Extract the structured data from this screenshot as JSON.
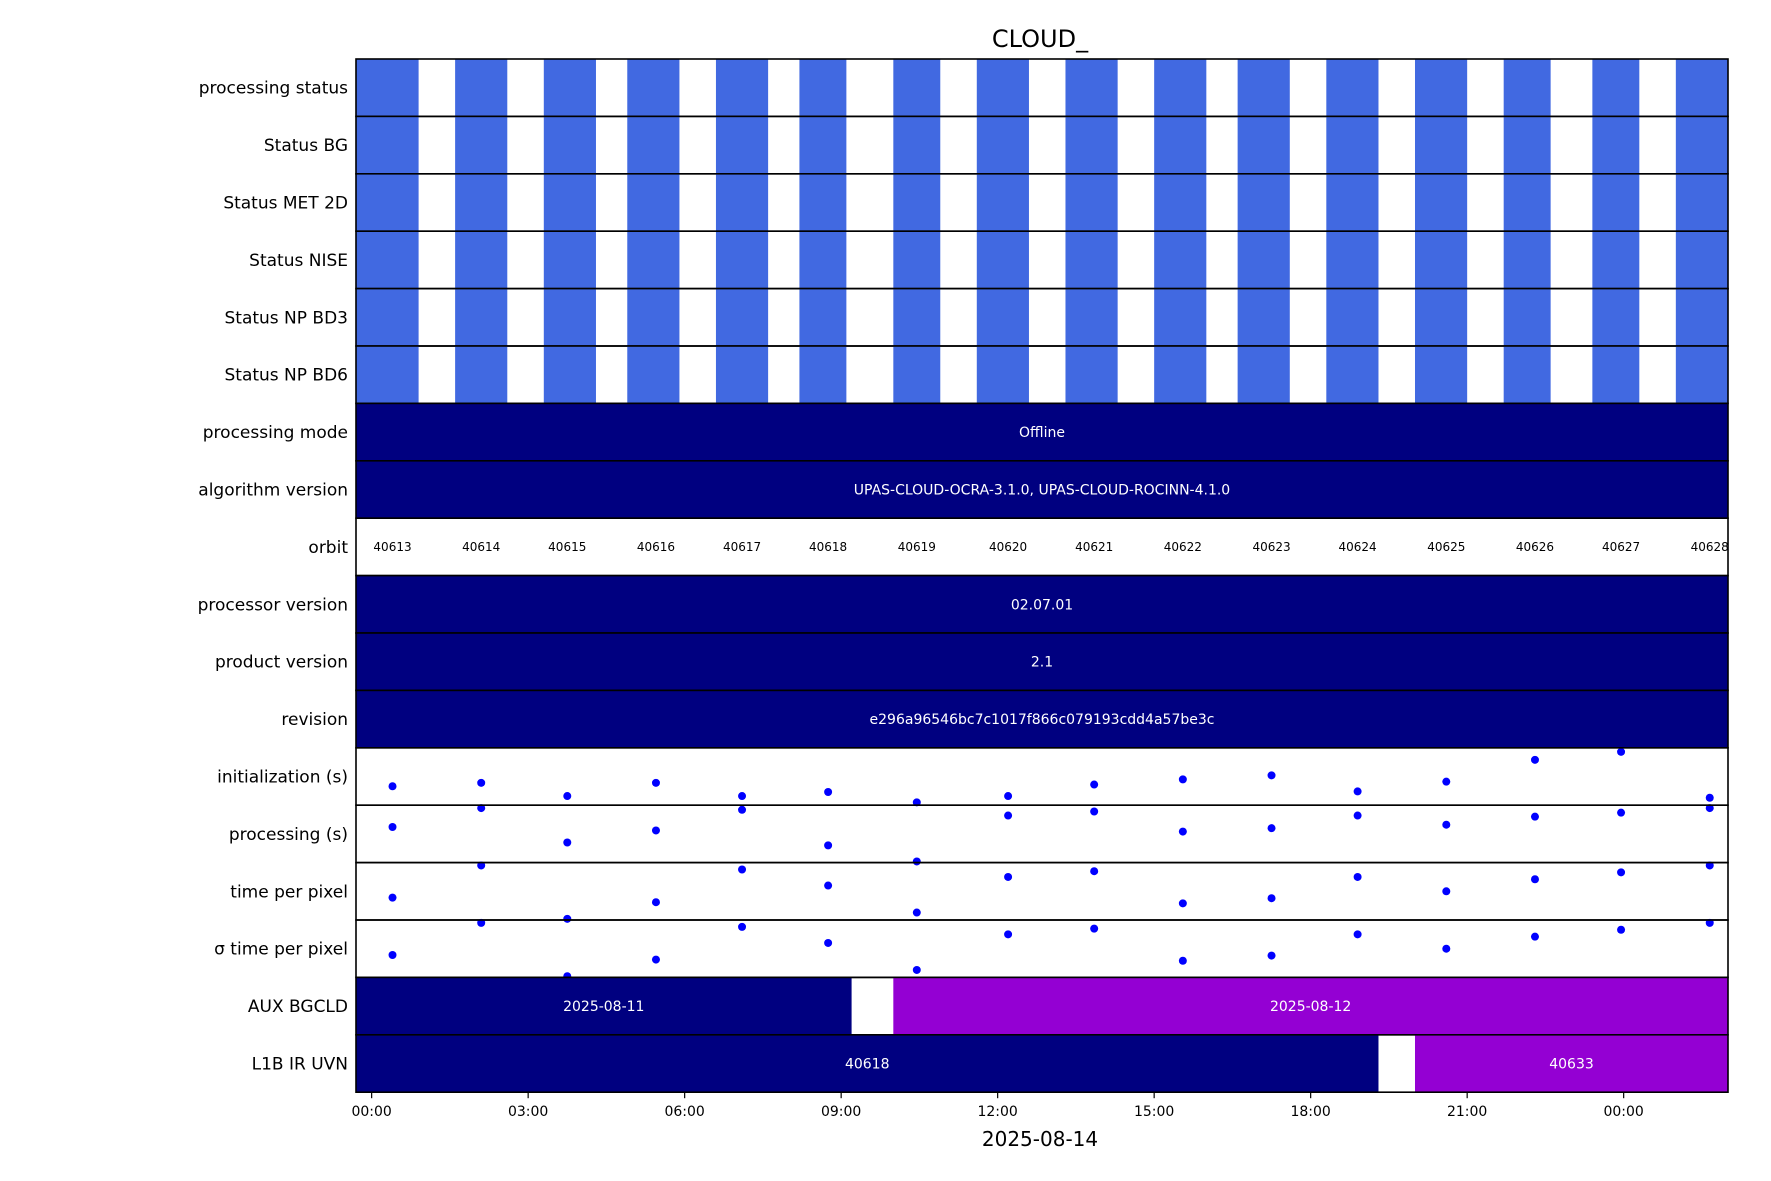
{
  "chart_data": {
    "type": "timeline",
    "title": "CLOUD_",
    "xlabel": "2025-08-14",
    "x_unit": "hours since 2025-08-14 00:00",
    "xlim": [
      -0.3,
      26.0
    ],
    "x_ticks": [
      {
        "value": 0,
        "label": "00:00"
      },
      {
        "value": 3,
        "label": "03:00"
      },
      {
        "value": 6,
        "label": "06:00"
      },
      {
        "value": 9,
        "label": "09:00"
      },
      {
        "value": 12,
        "label": "12:00"
      },
      {
        "value": 15,
        "label": "15:00"
      },
      {
        "value": 18,
        "label": "18:00"
      },
      {
        "value": 21,
        "label": "21:00"
      },
      {
        "value": 24,
        "label": "00:00"
      }
    ],
    "colors": {
      "status": "#4169e1",
      "fill": "#000080",
      "alt_fill": "#9400d3",
      "points": "#0000ff",
      "bar_text": "#ffffff",
      "border": "#000000"
    },
    "status_blocks": [
      [
        -0.3,
        0.9
      ],
      [
        1.6,
        2.6
      ],
      [
        3.3,
        4.3
      ],
      [
        4.9,
        5.9
      ],
      [
        6.6,
        7.6
      ],
      [
        8.2,
        9.1
      ],
      [
        10.0,
        10.9
      ],
      [
        11.6,
        12.6
      ],
      [
        13.3,
        14.3
      ],
      [
        15.0,
        16.0
      ],
      [
        16.6,
        17.6
      ],
      [
        18.3,
        19.3
      ],
      [
        20.0,
        21.0
      ],
      [
        21.7,
        22.6
      ],
      [
        23.4,
        24.3
      ],
      [
        25.0,
        26.0
      ]
    ],
    "rows": [
      {
        "label": "processing status",
        "kind": "status"
      },
      {
        "label": "Status BG",
        "kind": "status"
      },
      {
        "label": "Status MET 2D",
        "kind": "status"
      },
      {
        "label": "Status NISE",
        "kind": "status"
      },
      {
        "label": "Status NP BD3",
        "kind": "status"
      },
      {
        "label": "Status NP BD6",
        "kind": "status"
      },
      {
        "label": "processing mode",
        "kind": "bars",
        "bars": [
          {
            "start": -0.3,
            "end": 26.0,
            "text": "Offline",
            "color": "#000080"
          }
        ]
      },
      {
        "label": "algorithm version",
        "kind": "bars",
        "bars": [
          {
            "start": -0.3,
            "end": 26.0,
            "text": "UPAS-CLOUD-OCRA-3.1.0, UPAS-CLOUD-ROCINN-4.1.0",
            "color": "#000080"
          }
        ]
      },
      {
        "label": "orbit",
        "kind": "orbits",
        "x": [
          0.4,
          2.1,
          3.75,
          5.45,
          7.1,
          8.75,
          10.45,
          12.2,
          13.85,
          15.55,
          17.25,
          18.9,
          20.6,
          22.3,
          23.95,
          25.65
        ],
        "values": [
          "40613",
          "40614",
          "40615",
          "40616",
          "40617",
          "40618",
          "40619",
          "40620",
          "40621",
          "40622",
          "40623",
          "40624",
          "40625",
          "40626",
          "40627",
          "40628"
        ]
      },
      {
        "label": "processor version",
        "kind": "bars",
        "bars": [
          {
            "start": -0.3,
            "end": 26.0,
            "text": "02.07.01",
            "color": "#000080"
          }
        ]
      },
      {
        "label": "product version",
        "kind": "bars",
        "bars": [
          {
            "start": -0.3,
            "end": 26.0,
            "text": "2.1",
            "color": "#000080"
          }
        ]
      },
      {
        "label": "revision",
        "kind": "bars",
        "bars": [
          {
            "start": -0.3,
            "end": 26.0,
            "text": "e296a96546bc7c1017f866c079193cdd4a57be3c",
            "color": "#000080"
          }
        ]
      },
      {
        "label": "initialization (s)",
        "kind": "scatter",
        "x": [
          0.4,
          2.1,
          3.75,
          5.45,
          7.1,
          8.75,
          10.45,
          12.2,
          13.85,
          15.55,
          17.25,
          18.9,
          20.6,
          22.3,
          23.95,
          25.65
        ],
        "y": [
          0.33,
          0.39,
          0.16,
          0.39,
          0.16,
          0.23,
          0.05,
          0.16,
          0.36,
          0.45,
          0.52,
          0.24,
          0.41,
          0.79,
          0.93,
          0.13
        ]
      },
      {
        "label": "processing (s)",
        "kind": "scatter",
        "x": [
          0.4,
          2.1,
          3.75,
          5.45,
          7.1,
          8.75,
          10.45,
          12.2,
          13.85,
          15.55,
          17.25,
          18.9,
          20.6,
          22.3,
          23.95,
          25.65
        ],
        "y": [
          0.62,
          0.95,
          0.35,
          0.56,
          0.92,
          0.3,
          0.02,
          0.82,
          0.89,
          0.54,
          0.6,
          0.82,
          0.66,
          0.8,
          0.87,
          0.95
        ]
      },
      {
        "label": "time per pixel",
        "kind": "scatter",
        "x": [
          0.4,
          2.1,
          3.75,
          5.45,
          7.1,
          8.75,
          10.45,
          12.2,
          13.85,
          15.55,
          17.25,
          18.9,
          20.6,
          22.3,
          23.95,
          25.65
        ],
        "y": [
          0.39,
          0.95,
          0.02,
          0.31,
          0.88,
          0.6,
          0.13,
          0.75,
          0.85,
          0.29,
          0.38,
          0.75,
          0.5,
          0.71,
          0.83,
          0.95
        ]
      },
      {
        "label": "σ time per pixel",
        "kind": "scatter",
        "x": [
          0.4,
          2.1,
          3.75,
          5.45,
          7.1,
          8.75,
          10.45,
          12.2,
          13.85,
          15.55,
          17.25,
          18.9,
          20.6,
          22.3,
          23.95,
          25.65
        ],
        "y": [
          0.39,
          0.95,
          0.02,
          0.31,
          0.88,
          0.6,
          0.13,
          0.75,
          0.85,
          0.29,
          0.38,
          0.75,
          0.5,
          0.71,
          0.83,
          0.95
        ]
      },
      {
        "label": "AUX BGCLD",
        "kind": "bars",
        "bars": [
          {
            "start": -0.3,
            "end": 9.2,
            "text": "2025-08-11",
            "color": "#000080"
          },
          {
            "start": 10.0,
            "end": 26.0,
            "text": "2025-08-12",
            "color": "#9400d3"
          }
        ]
      },
      {
        "label": "L1B IR UVN",
        "kind": "bars",
        "bars": [
          {
            "start": -0.3,
            "end": 19.3,
            "text": "40618",
            "color": "#000080"
          },
          {
            "start": 20.0,
            "end": 26.0,
            "text": "40633",
            "color": "#9400d3"
          }
        ]
      }
    ]
  }
}
